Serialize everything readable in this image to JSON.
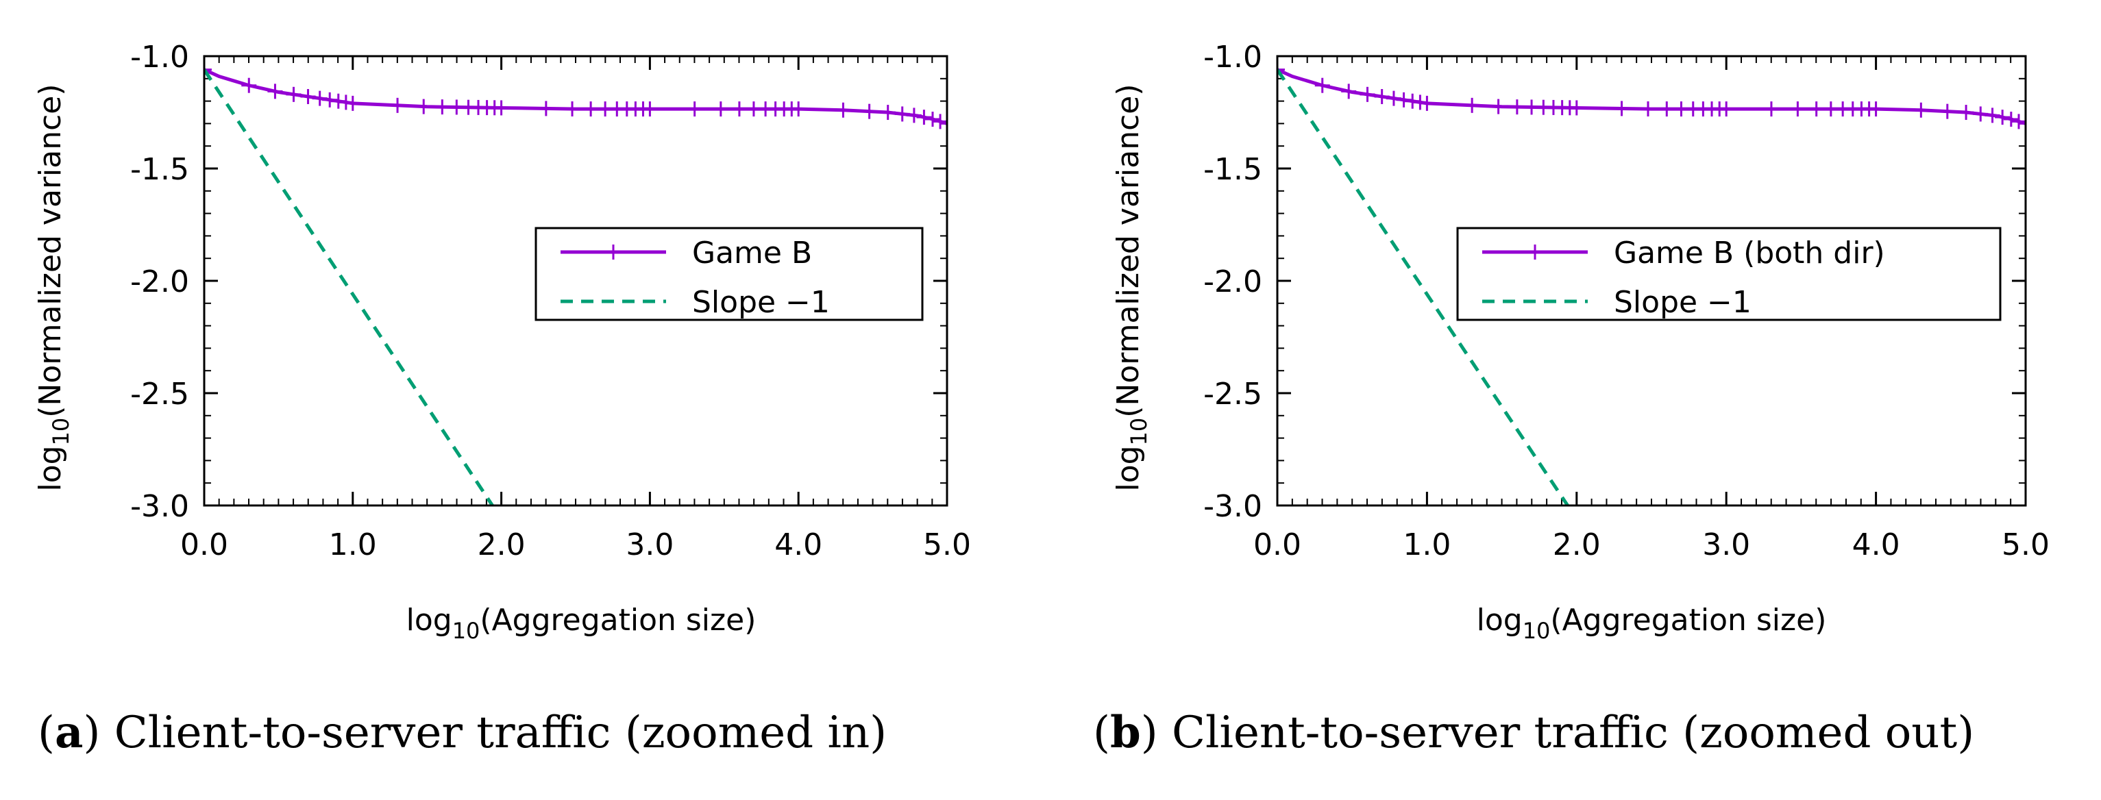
{
  "chart_data": [
    {
      "type": "line",
      "panel_letter": "a",
      "caption": "Client-to-server traffic (zoomed in)",
      "xlabel_prefix": "log",
      "xlabel_sub": "10",
      "xlabel_rest": "(Aggregation size)",
      "ylabel_prefix": "log",
      "ylabel_sub": "10",
      "ylabel_rest": "(Normalized variance)",
      "xlim": [
        0.0,
        5.0
      ],
      "ylim": [
        -3.0,
        -1.0
      ],
      "xticks": [
        "0.0",
        "1.0",
        "2.0",
        "3.0",
        "4.0",
        "5.0"
      ],
      "yticks": [
        "-3.0",
        "-2.5",
        "-2.0",
        "-1.5",
        "-1.0"
      ],
      "legend_position": "center-right",
      "series": [
        {
          "name": "Game B",
          "style": "solid-with-plus-markers",
          "color": "#9400d3",
          "x": [
            0.0,
            0.1,
            0.2,
            0.3,
            0.5,
            0.7,
            1.0,
            1.5,
            2.0,
            2.5,
            3.0,
            3.5,
            4.0,
            4.3,
            4.6,
            4.8,
            4.9,
            5.0
          ],
          "y": [
            -1.06,
            -1.09,
            -1.11,
            -1.13,
            -1.16,
            -1.18,
            -1.21,
            -1.225,
            -1.23,
            -1.235,
            -1.235,
            -1.235,
            -1.235,
            -1.24,
            -1.25,
            -1.265,
            -1.28,
            -1.3
          ]
        },
        {
          "name": "Slope −1",
          "style": "dashed",
          "color": "#009e73",
          "x": [
            0.0,
            1.94
          ],
          "y": [
            -1.06,
            -3.0
          ]
        }
      ]
    },
    {
      "type": "line",
      "panel_letter": "b",
      "caption": "Client-to-server traffic (zoomed out)",
      "xlabel_prefix": "log",
      "xlabel_sub": "10",
      "xlabel_rest": "(Aggregation size)",
      "ylabel_prefix": "log",
      "ylabel_sub": "10",
      "ylabel_rest": "(Normalized variance)",
      "xlim": [
        0.0,
        5.0
      ],
      "ylim": [
        -3.0,
        -1.0
      ],
      "xticks": [
        "0.0",
        "1.0",
        "2.0",
        "3.0",
        "4.0",
        "5.0"
      ],
      "yticks": [
        "-3.0",
        "-2.5",
        "-2.0",
        "-1.5",
        "-1.0"
      ],
      "legend_position": "center-right",
      "series": [
        {
          "name": "Game B (both dir)",
          "style": "solid-with-plus-markers",
          "color": "#9400d3",
          "x": [
            0.0,
            0.1,
            0.2,
            0.3,
            0.5,
            0.7,
            1.0,
            1.5,
            2.0,
            2.5,
            3.0,
            3.5,
            4.0,
            4.3,
            4.6,
            4.8,
            4.9,
            5.0
          ],
          "y": [
            -1.06,
            -1.09,
            -1.11,
            -1.13,
            -1.16,
            -1.18,
            -1.21,
            -1.225,
            -1.23,
            -1.235,
            -1.235,
            -1.235,
            -1.235,
            -1.24,
            -1.25,
            -1.265,
            -1.28,
            -1.3
          ]
        },
        {
          "name": "Slope −1",
          "style": "dashed",
          "color": "#009e73",
          "x": [
            0.0,
            1.94
          ],
          "y": [
            -1.06,
            -3.0
          ]
        }
      ]
    }
  ]
}
